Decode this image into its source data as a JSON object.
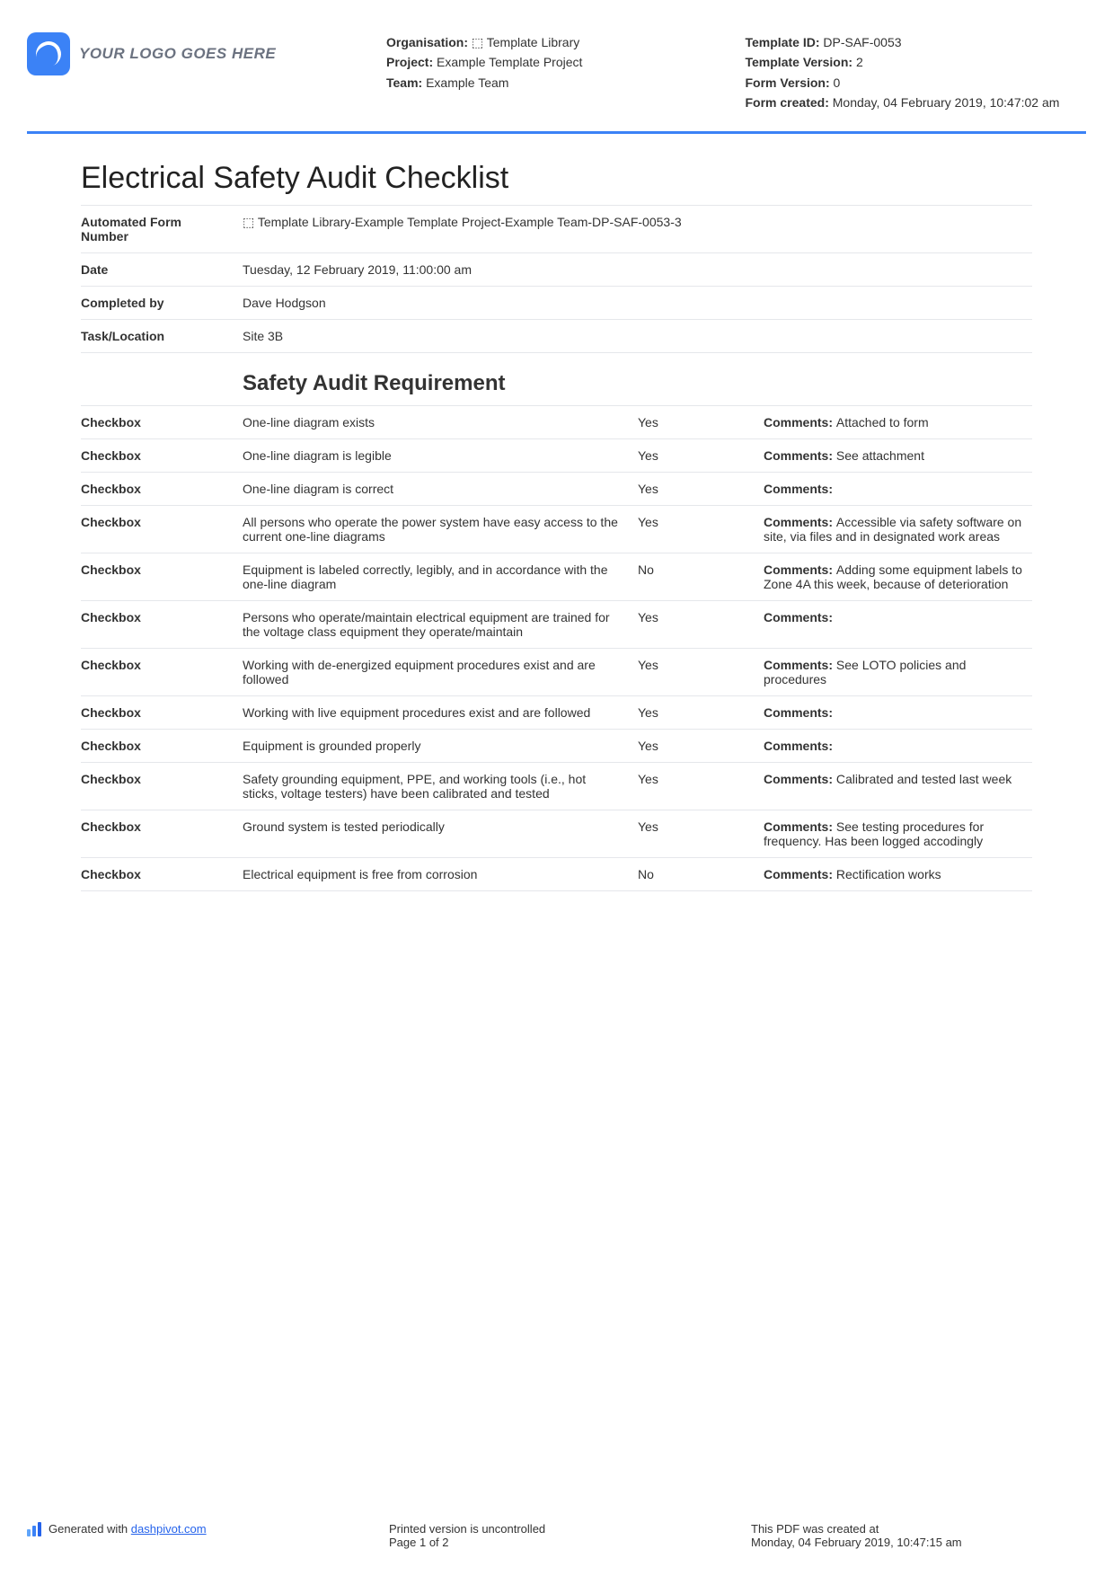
{
  "header": {
    "logo_text": "YOUR LOGO GOES HERE",
    "left": [
      {
        "label": "Organisation:",
        "value": "⬚ Template Library"
      },
      {
        "label": "Project:",
        "value": "Example Template Project"
      },
      {
        "label": "Team:",
        "value": "Example Team"
      }
    ],
    "right": [
      {
        "label": "Template ID:",
        "value": "DP-SAF-0053"
      },
      {
        "label": "Template Version:",
        "value": "2"
      },
      {
        "label": "Form Version:",
        "value": "0"
      },
      {
        "label": "Form created:",
        "value": "Monday, 04 February 2019, 10:47:02 am"
      }
    ]
  },
  "title": "Electrical Safety Audit Checklist",
  "info": [
    {
      "label": "Automated Form Number",
      "value": "⬚ Template Library-Example Template Project-Example Team-DP-SAF-0053-3"
    },
    {
      "label": "Date",
      "value": "Tuesday, 12 February 2019, 11:00:00 am"
    },
    {
      "label": "Completed by",
      "value": "Dave Hodgson"
    },
    {
      "label": "Task/Location",
      "value": "Site 3B"
    }
  ],
  "section_heading": "Safety Audit Requirement",
  "checkbox_label": "Checkbox",
  "comments_label": "Comments:",
  "checklist": [
    {
      "req": "One-line diagram exists",
      "ans": "Yes",
      "comments": "Attached to form"
    },
    {
      "req": "One-line diagram is legible",
      "ans": "Yes",
      "comments": "See attachment"
    },
    {
      "req": "One-line diagram is correct",
      "ans": "Yes",
      "comments": ""
    },
    {
      "req": "All persons who operate the power system have easy access to the current one-line diagrams",
      "ans": "Yes",
      "comments": "Accessible via safety software on site, via files and in designated work areas"
    },
    {
      "req": "Equipment is labeled correctly, legibly, and in accordance with the one-line diagram",
      "ans": "No",
      "comments": "Adding some equipment labels to Zone 4A this week, because of deterioration"
    },
    {
      "req": "Persons who operate/maintain electrical equipment are trained for the voltage class equipment they operate/maintain",
      "ans": "Yes",
      "comments": ""
    },
    {
      "req": "Working with de-energized equipment procedures exist and are followed",
      "ans": "Yes",
      "comments": "See LOTO policies and procedures"
    },
    {
      "req": "Working with live equipment procedures exist and are followed",
      "ans": "Yes",
      "comments": ""
    },
    {
      "req": "Equipment is grounded properly",
      "ans": "Yes",
      "comments": ""
    },
    {
      "req": "Safety grounding equipment, PPE, and working tools (i.e., hot sticks, voltage testers) have been calibrated and tested",
      "ans": "Yes",
      "comments": "Calibrated and tested last week"
    },
    {
      "req": "Ground system is tested periodically",
      "ans": "Yes",
      "comments": "See testing procedures for frequency. Has been logged accodingly"
    },
    {
      "req": "Electrical equipment is free from corrosion",
      "ans": "No",
      "comments": "Rectification works"
    }
  ],
  "footer": {
    "generated_prefix": "Generated with ",
    "generated_link": "dashpivot.com",
    "mid_line1": "Printed version is uncontrolled",
    "mid_line2": "Page 1 of 2",
    "right_line1": "This PDF was created at",
    "right_line2": "Monday, 04 February 2019, 10:47:15 am"
  }
}
